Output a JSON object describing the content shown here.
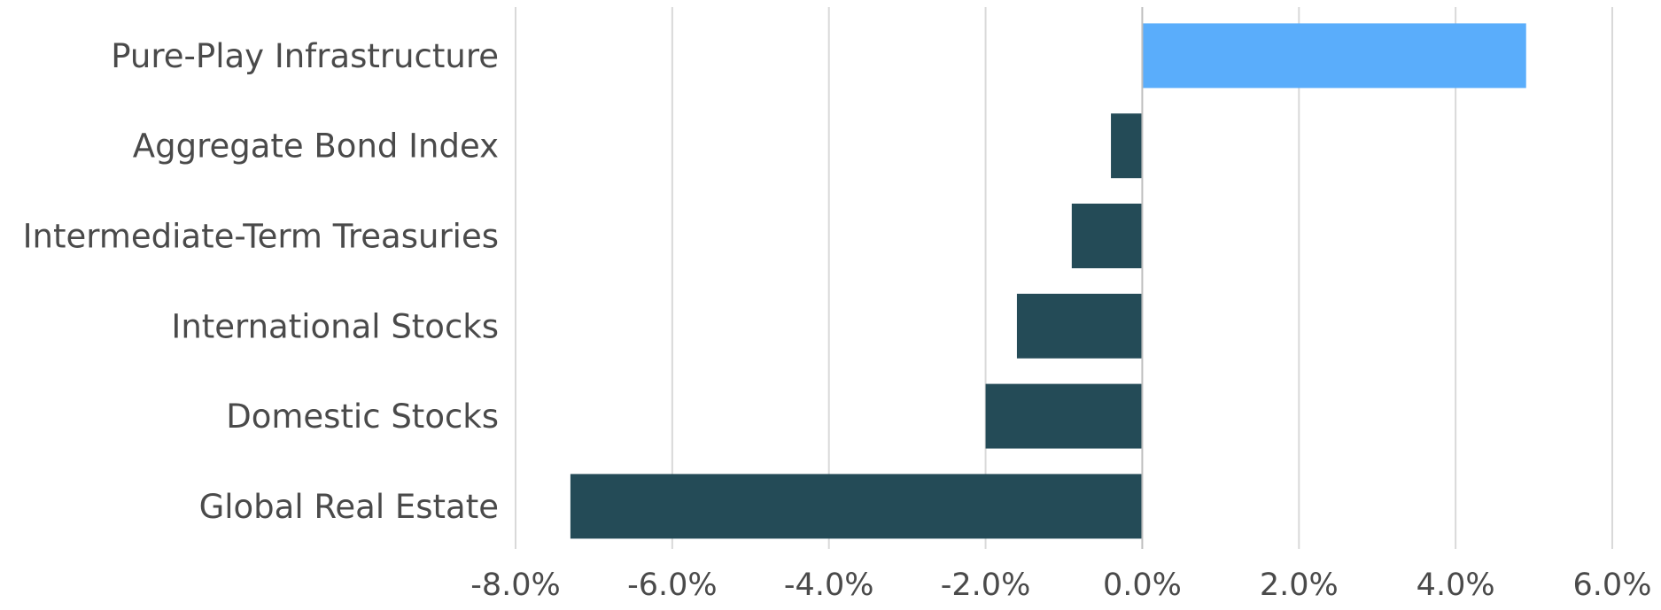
{
  "chart_data": {
    "type": "bar",
    "orientation": "horizontal",
    "title": "",
    "xlabel": "",
    "ylabel": "",
    "categories": [
      "Pure-Play Infrastructure",
      "Aggregate Bond Index",
      "Intermediate-Term Treasuries",
      "International Stocks",
      "Domestic Stocks",
      "Global Real Estate"
    ],
    "values": [
      4.9,
      -0.4,
      -0.9,
      -1.6,
      -2.0,
      -7.3
    ],
    "bar_colors": [
      "#5aadfb",
      "#244b57",
      "#244b57",
      "#244b57",
      "#244b57",
      "#244b57"
    ],
    "xlim": [
      -8.0,
      6.0
    ],
    "xticks": [
      -8.0,
      -6.0,
      -4.0,
      -2.0,
      0.0,
      2.0,
      4.0,
      6.0
    ],
    "xtick_labels": [
      "-8.0%",
      "-6.0%",
      "-4.0%",
      "-2.0%",
      "0.0%",
      "2.0%",
      "4.0%",
      "6.0%"
    ],
    "grid": "vertical",
    "legend": "none"
  }
}
